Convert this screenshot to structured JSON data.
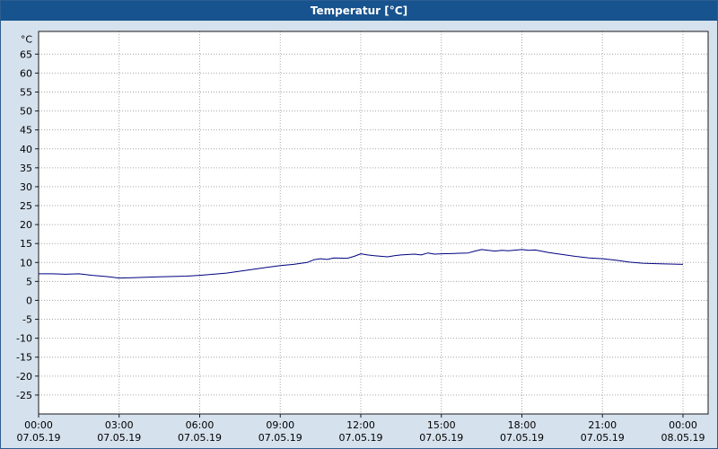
{
  "window": {
    "title": "Temperatur [°C]"
  },
  "colors": {
    "titlebar_bg": "#17538e",
    "titlebar_text": "#ffffff",
    "window_bg": "#d5e1ed",
    "plot_bg": "#ffffff",
    "grid": "#a6a6a6",
    "frame": "#1a1a1a",
    "axis_text": "#000000",
    "series": "#000080"
  },
  "chart_data": {
    "type": "line",
    "title": "Temperatur [°C]",
    "xlabel": "",
    "ylabel": "°C",
    "grid": true,
    "legend": false,
    "ylim": [
      -30,
      71
    ],
    "xlim_hours": [
      0,
      24.9
    ],
    "y_ticks": [
      65,
      60,
      55,
      50,
      45,
      40,
      35,
      30,
      25,
      20,
      15,
      10,
      5,
      0,
      -5,
      -10,
      -15,
      -20,
      -25
    ],
    "x_ticks": [
      {
        "hour": 0,
        "time": "00:00",
        "date": "07.05.19"
      },
      {
        "hour": 3,
        "time": "03:00",
        "date": "07.05.19"
      },
      {
        "hour": 6,
        "time": "06:00",
        "date": "07.05.19"
      },
      {
        "hour": 9,
        "time": "09:00",
        "date": "07.05.19"
      },
      {
        "hour": 12,
        "time": "12:00",
        "date": "07.05.19"
      },
      {
        "hour": 15,
        "time": "15:00",
        "date": "07.05.19"
      },
      {
        "hour": 18,
        "time": "18:00",
        "date": "07.05.19"
      },
      {
        "hour": 21,
        "time": "21:00",
        "date": "07.05.19"
      },
      {
        "hour": 24,
        "time": "00:00",
        "date": "08.05.19"
      }
    ],
    "series": [
      {
        "name": "Temperatur",
        "color": "#000080",
        "x": [
          0,
          0.5,
          1,
          1.5,
          2,
          2.5,
          3,
          3.5,
          4,
          4.5,
          5,
          5.5,
          6,
          6.5,
          7,
          7.5,
          8,
          8.5,
          9,
          9.5,
          10,
          10.25,
          10.5,
          10.75,
          11,
          11.5,
          11.75,
          12,
          12.25,
          12.5,
          13,
          13.25,
          13.5,
          14,
          14.25,
          14.5,
          14.75,
          15,
          15.5,
          16,
          16.25,
          16.5,
          17,
          17.25,
          17.5,
          18,
          18.25,
          18.5,
          19,
          19.5,
          20,
          20.5,
          21,
          21.5,
          22,
          22.5,
          23,
          23.5,
          24
        ],
        "values": [
          7,
          7,
          6.9,
          7,
          6.6,
          6.3,
          5.9,
          6,
          6.1,
          6.2,
          6.3,
          6.4,
          6.6,
          6.9,
          7.2,
          7.7,
          8.2,
          8.7,
          9.2,
          9.5,
          10,
          10.7,
          11,
          10.8,
          11.2,
          11.1,
          11.6,
          12.3,
          12,
          11.8,
          11.5,
          11.8,
          12,
          12.2,
          12,
          12.5,
          12.2,
          12.3,
          12.4,
          12.5,
          13,
          13.4,
          13,
          13.2,
          13.1,
          13.4,
          13.2,
          13.3,
          12.6,
          12.1,
          11.6,
          11.2,
          11,
          10.6,
          10.1,
          9.8,
          9.7,
          9.6,
          9.5
        ]
      }
    ]
  }
}
